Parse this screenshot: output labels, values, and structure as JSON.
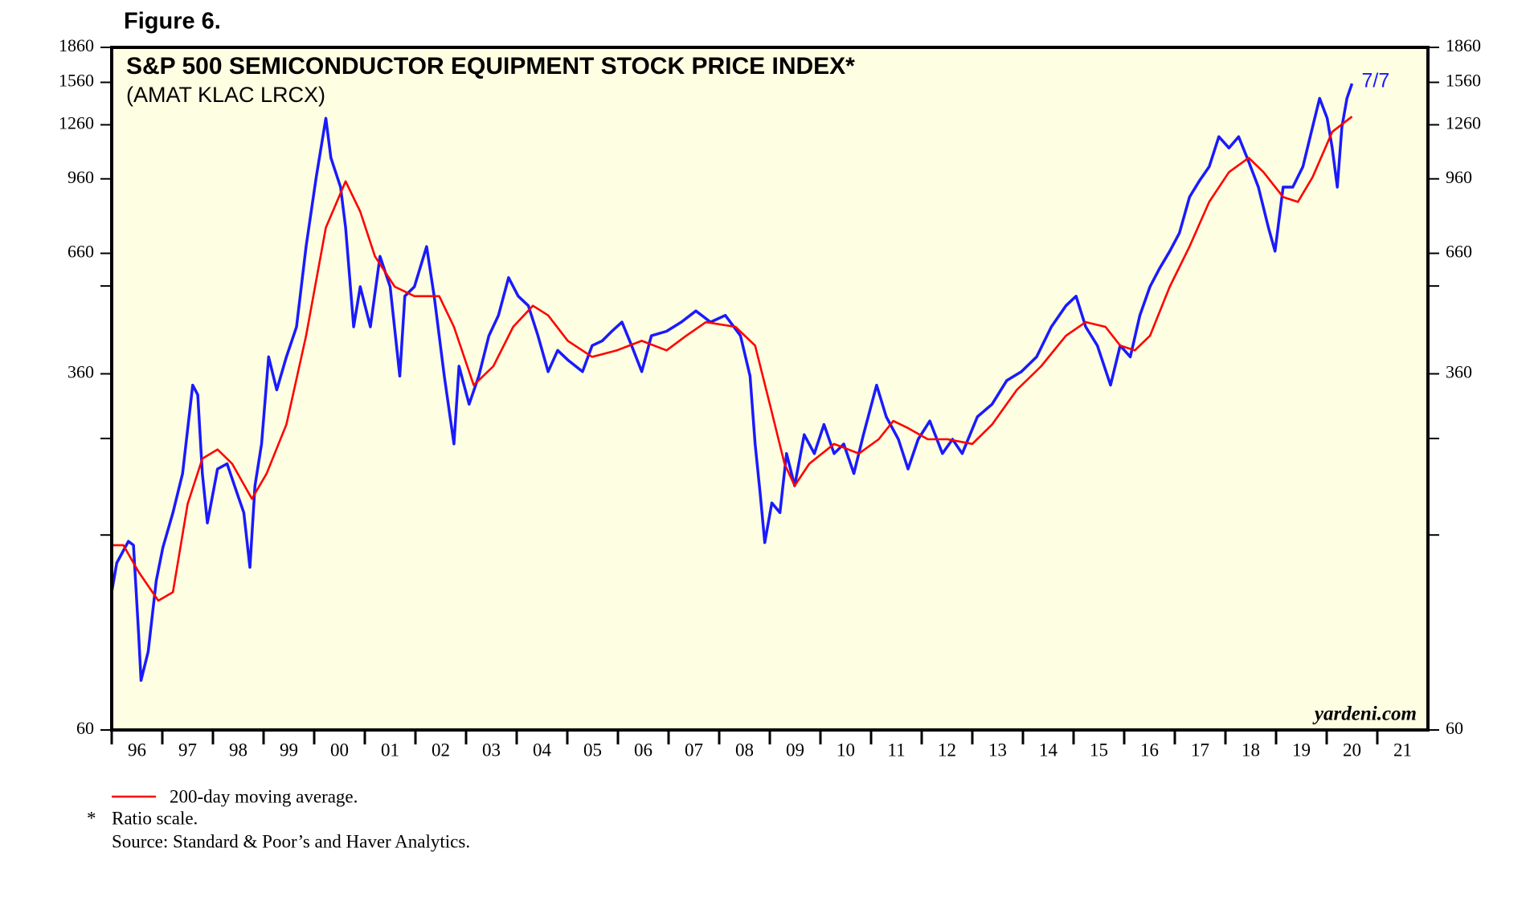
{
  "chart_data": {
    "type": "line",
    "figure_label": "Figure 6.",
    "title": "S&P 500 SEMICONDUCTOR EQUIPMENT STOCK PRICE INDEX*",
    "subtitle": "(AMAT KLAC LRCX)",
    "annotation": "7/7",
    "watermark": "yardeni.com",
    "footnotes": [
      "*",
      "Ratio scale.",
      "Source: Standard & Poor’s and Haver Analytics."
    ],
    "log_scale": true,
    "background": "#fefee2",
    "xlim": [
      1996,
      2022
    ],
    "ylim": [
      60,
      1860
    ],
    "yticks": [
      60,
      360,
      660,
      960,
      1260,
      1560,
      1860
    ],
    "yminorticks": [
      160,
      260,
      560
    ],
    "xticks": [
      {
        "value": 1996,
        "label": "96"
      },
      {
        "value": 1997,
        "label": "97"
      },
      {
        "value": 1998,
        "label": "98"
      },
      {
        "value": 1999,
        "label": "99"
      },
      {
        "value": 2000,
        "label": "00"
      },
      {
        "value": 2001,
        "label": "01"
      },
      {
        "value": 2002,
        "label": "02"
      },
      {
        "value": 2003,
        "label": "03"
      },
      {
        "value": 2004,
        "label": "04"
      },
      {
        "value": 2005,
        "label": "05"
      },
      {
        "value": 2006,
        "label": "06"
      },
      {
        "value": 2007,
        "label": "07"
      },
      {
        "value": 2008,
        "label": "08"
      },
      {
        "value": 2009,
        "label": "09"
      },
      {
        "value": 2010,
        "label": "10"
      },
      {
        "value": 2011,
        "label": "11"
      },
      {
        "value": 2012,
        "label": "12"
      },
      {
        "value": 2013,
        "label": "13"
      },
      {
        "value": 2014,
        "label": "14"
      },
      {
        "value": 2015,
        "label": "15"
      },
      {
        "value": 2016,
        "label": "16"
      },
      {
        "value": 2017,
        "label": "17"
      },
      {
        "value": 2018,
        "label": "18"
      },
      {
        "value": 2019,
        "label": "19"
      },
      {
        "value": 2020,
        "label": "20"
      },
      {
        "value": 2021,
        "label": "21"
      }
    ],
    "series": [
      {
        "color": "#1a1aff",
        "x": [
          1996.0,
          1996.1,
          1996.33,
          1996.43,
          1996.53,
          1996.58,
          1996.72,
          1996.88,
          1997.01,
          1997.21,
          1997.4,
          1997.6,
          1997.7,
          1997.79,
          1997.89,
          1998.09,
          1998.28,
          1998.48,
          1998.61,
          1998.73,
          1998.83,
          1998.96,
          1999.1,
          1999.26,
          1999.45,
          1999.65,
          1999.84,
          2000.04,
          2000.23,
          2000.33,
          2000.52,
          2000.62,
          2000.78,
          2000.91,
          2001.11,
          2001.3,
          2001.5,
          2001.69,
          2001.79,
          2001.98,
          2002.22,
          2002.37,
          2002.57,
          2002.76,
          2002.86,
          2003.06,
          2003.25,
          2003.45,
          2003.64,
          2003.84,
          2004.03,
          2004.23,
          2004.42,
          2004.62,
          2004.81,
          2005.01,
          2005.3,
          2005.49,
          2005.69,
          2005.88,
          2006.08,
          2006.27,
          2006.47,
          2006.66,
          2006.96,
          2007.25,
          2007.54,
          2007.83,
          2008.12,
          2008.42,
          2008.61,
          2008.71,
          2008.81,
          2008.9,
          2009.04,
          2009.2,
          2009.33,
          2009.49,
          2009.68,
          2009.88,
          2010.07,
          2010.27,
          2010.46,
          2010.66,
          2010.85,
          2011.11,
          2011.3,
          2011.54,
          2011.73,
          2011.93,
          2012.16,
          2012.41,
          2012.61,
          2012.8,
          2013.1,
          2013.39,
          2013.68,
          2013.97,
          2014.27,
          2014.56,
          2014.85,
          2015.05,
          2015.24,
          2015.47,
          2015.73,
          2015.92,
          2016.12,
          2016.31,
          2016.51,
          2016.7,
          2016.9,
          2017.09,
          2017.29,
          2017.48,
          2017.68,
          2017.87,
          2018.07,
          2018.26,
          2018.46,
          2018.65,
          2018.85,
          2018.98,
          2019.14,
          2019.33,
          2019.53,
          2019.72,
          2019.86,
          2020.01,
          2020.11,
          2020.21,
          2020.3,
          2020.4,
          2020.5
        ],
        "values": [
          120,
          139,
          155,
          152,
          98,
          77,
          89,
          127,
          150,
          179,
          218,
          340,
          324,
          218,
          170,
          223,
          229,
          197,
          179,
          136,
          205,
          253,
          392,
          332,
          392,
          456,
          683,
          968,
          1302,
          1067,
          921,
          751,
          456,
          558,
          456,
          650,
          558,
          356,
          532,
          558,
          683,
          532,
          356,
          253,
          374,
          309,
          356,
          436,
          483,
          584,
          532,
          507,
          436,
          364,
          405,
          386,
          364,
          415,
          425,
          446,
          467,
          415,
          364,
          436,
          446,
          467,
          494,
          467,
          483,
          436,
          356,
          253,
          197,
          154,
          188,
          179,
          241,
          205,
          265,
          241,
          279,
          241,
          253,
          218,
          265,
          340,
          290,
          259,
          223,
          259,
          284,
          241,
          259,
          241,
          290,
          309,
          348,
          364,
          392,
          456,
          507,
          532,
          456,
          415,
          340,
          415,
          392,
          483,
          558,
          612,
          667,
          731,
          876,
          948,
          1021,
          1187,
          1121,
          1187,
          1046,
          921,
          751,
          667,
          921,
          921,
          1021,
          1246,
          1440,
          1302,
          1121,
          921,
          1246,
          1440,
          1550
        ]
      },
      {
        "name": "200-day moving average.",
        "color": "#ff0000",
        "x": [
          1996.0,
          1996.23,
          1996.53,
          1996.92,
          1997.21,
          1997.5,
          1997.79,
          1998.09,
          1998.38,
          1998.77,
          1999.06,
          1999.45,
          1999.84,
          2000.23,
          2000.62,
          2000.91,
          2001.2,
          2001.59,
          2001.98,
          2002.47,
          2002.76,
          2003.15,
          2003.54,
          2003.93,
          2004.32,
          2004.62,
          2005.01,
          2005.49,
          2005.98,
          2006.47,
          2006.96,
          2007.35,
          2007.74,
          2008.32,
          2008.71,
          2009.0,
          2009.29,
          2009.49,
          2009.78,
          2010.27,
          2010.76,
          2011.15,
          2011.44,
          2011.73,
          2012.12,
          2012.51,
          2013.0,
          2013.39,
          2013.88,
          2014.36,
          2014.85,
          2015.24,
          2015.63,
          2015.92,
          2016.21,
          2016.51,
          2016.9,
          2017.29,
          2017.68,
          2018.07,
          2018.46,
          2018.75,
          2019.14,
          2019.43,
          2019.72,
          2020.11,
          2020.5
        ],
        "values": [
          152,
          152,
          133,
          115,
          120,
          187,
          235,
          246,
          229,
          192,
          218,
          279,
          436,
          751,
          948,
          814,
          650,
          558,
          532,
          532,
          456,
          340,
          374,
          456,
          507,
          483,
          425,
          392,
          405,
          425,
          405,
          436,
          467,
          456,
          415,
          309,
          229,
          205,
          229,
          253,
          241,
          259,
          284,
          274,
          259,
          259,
          253,
          279,
          332,
          374,
          436,
          467,
          456,
          415,
          405,
          436,
          558,
          683,
          855,
          993,
          1067,
          993,
          876,
          855,
          968,
          1216,
          1313
        ]
      }
    ]
  }
}
